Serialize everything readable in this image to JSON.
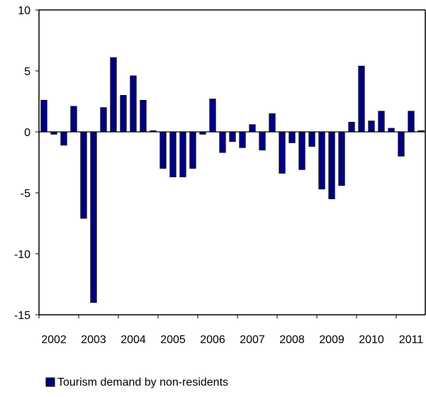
{
  "chart_data": {
    "type": "bar",
    "title": "",
    "xlabel": "",
    "ylabel": "",
    "ylim": [
      -15,
      10
    ],
    "yticks": [
      10,
      5,
      0,
      -5,
      -10,
      -15
    ],
    "ytick_labels": [
      "10",
      "5",
      "0",
      "-5",
      "-10",
      "-15"
    ],
    "year_labels": [
      "2002",
      "2003",
      "2004",
      "2005",
      "2006",
      "2007",
      "2008",
      "2009",
      "2010",
      "2011"
    ],
    "grid": false,
    "legend_position": "bottom-left",
    "series": [
      {
        "name": "Tourism demand by non-residents",
        "color": "#000080",
        "values": [
          2.6,
          -0.2,
          -1.1,
          2.1,
          -7.1,
          -14.0,
          2.0,
          6.1,
          3.0,
          4.6,
          2.6,
          0.1,
          -3.0,
          -3.7,
          -3.7,
          -3.0,
          -0.2,
          2.7,
          -1.7,
          -0.8,
          -1.3,
          0.6,
          -1.5,
          1.5,
          -3.4,
          -0.9,
          -3.1,
          -1.2,
          -4.7,
          -5.5,
          -4.4,
          0.8,
          5.4,
          0.9,
          1.7,
          0.3,
          -2.0,
          1.7,
          0.1
        ]
      }
    ]
  }
}
